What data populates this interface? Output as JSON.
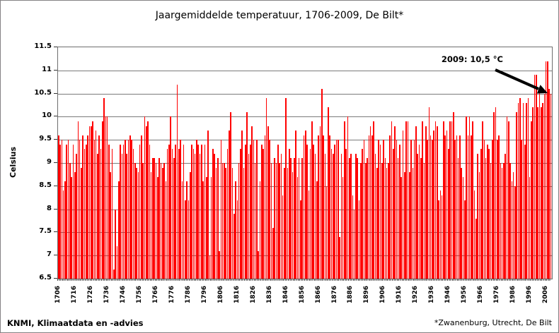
{
  "title": "Jaargemiddelde temperatuur, 1706-2009, De Bilt*",
  "y_axis": {
    "label": "Celsius",
    "min": 6.5,
    "max": 11.5,
    "ticks": [
      {
        "label": "11.5",
        "value": 11.5
      },
      {
        "label": "11",
        "value": 11.0
      },
      {
        "label": "10.5",
        "value": 10.5
      },
      {
        "label": "10",
        "value": 10.0
      },
      {
        "label": "9.5",
        "value": 9.5
      },
      {
        "label": "9",
        "value": 9.0
      },
      {
        "label": "8.5",
        "value": 8.5
      },
      {
        "label": "8",
        "value": 8.0
      },
      {
        "label": "7.5",
        "value": 7.5
      },
      {
        "label": "7",
        "value": 7.0
      },
      {
        "label": "6.5",
        "value": 6.5
      }
    ]
  },
  "x_axis": {
    "tick_years": [
      1706,
      1716,
      1726,
      1736,
      1746,
      1756,
      1766,
      1776,
      1786,
      1796,
      1806,
      1816,
      1826,
      1836,
      1846,
      1856,
      1866,
      1876,
      1886,
      1896,
      1906,
      1916,
      1926,
      1936,
      1946,
      1956,
      1966,
      1976,
      1986,
      1996,
      2006
    ]
  },
  "annotation": {
    "text": "2009: 10,5 °C"
  },
  "footer": {
    "left": "KNMI, Klimaatdata en -advies",
    "right": "*Zwanenburg, Utrecht, De Bilt"
  },
  "colors": {
    "bar": "#ff0000",
    "gridline": "#7a7a7a",
    "axis_text": "#000000",
    "border": "#848284",
    "arrow": "#000000"
  },
  "chart_data": {
    "type": "bar",
    "title": "Jaargemiddelde temperatuur, 1706-2009, De Bilt*",
    "xlabel": "",
    "ylabel": "Celsius",
    "ylim": [
      6.5,
      11.5
    ],
    "x_tick_step": 10,
    "grid": true,
    "legend": false,
    "annotation": "2009: 10,5 °C",
    "year_start": 1706,
    "year_end": 2009,
    "values": [
      9.6,
      9.4,
      9.5,
      8.4,
      8.6,
      9.4,
      9.5,
      9.0,
      8.7,
      9.4,
      8.8,
      9.2,
      9.9,
      9.5,
      8.9,
      9.6,
      9.3,
      9.4,
      9.6,
      9.8,
      9.8,
      9.9,
      9.5,
      9.7,
      9.2,
      9.6,
      9.3,
      9.9,
      10.4,
      10.0,
      10.0,
      9.4,
      8.8,
      9.3,
      6.7,
      8.0,
      7.2,
      8.6,
      9.4,
      9.2,
      9.4,
      9.5,
      9.2,
      9.5,
      9.6,
      9.5,
      9.3,
      9.0,
      8.9,
      8.8,
      9.4,
      9.6,
      9.0,
      10.0,
      9.8,
      9.9,
      9.4,
      8.8,
      9.1,
      9.1,
      9.0,
      8.7,
      9.1,
      9.0,
      8.9,
      9.0,
      8.6,
      9.3,
      9.4,
      10.0,
      9.3,
      9.1,
      9.4,
      10.7,
      9.3,
      9.5,
      8.6,
      9.4,
      8.2,
      8.6,
      8.2,
      8.8,
      9.4,
      9.3,
      9.2,
      9.5,
      9.4,
      9.2,
      9.4,
      8.6,
      9.4,
      8.7,
      9.7,
      7.0,
      8.7,
      9.3,
      9.2,
      8.9,
      9.1,
      7.1,
      9.5,
      9.0,
      9.0,
      8.9,
      9.3,
      9.7,
      10.1,
      8.9,
      7.9,
      8.6,
      8.2,
      9.0,
      9.3,
      9.7,
      8.9,
      9.4,
      10.1,
      9.2,
      9.4,
      9.8,
      9.5,
      9.0,
      9.5,
      7.1,
      8.6,
      9.4,
      9.3,
      9.6,
      10.4,
      9.8,
      9.5,
      9.0,
      7.6,
      9.1,
      9.0,
      9.4,
      9.0,
      9.2,
      8.3,
      8.9,
      10.4,
      8.9,
      9.3,
      9.1,
      8.8,
      9.1,
      9.7,
      8.7,
      9.1,
      8.2,
      9.1,
      9.6,
      9.7,
      9.4,
      8.4,
      9.3,
      9.9,
      9.4,
      9.2,
      8.6,
      9.6,
      9.8,
      10.6,
      9.6,
      9.2,
      8.5,
      10.2,
      9.6,
      9.3,
      9.2,
      9.4,
      9.5,
      9.5,
      7.4,
      9.2,
      8.7,
      9.9,
      9.3,
      10.0,
      9.1,
      9.2,
      8.3,
      8.0,
      9.2,
      9.1,
      8.2,
      9.0,
      9.3,
      9.5,
      9.0,
      9.1,
      9.6,
      9.8,
      9.6,
      9.9,
      9.2,
      8.9,
      9.5,
      9.4,
      9.0,
      9.5,
      9.1,
      8.9,
      9.0,
      9.6,
      9.9,
      9.3,
      9.8,
      9.5,
      9.1,
      9.4,
      8.7,
      9.7,
      8.8,
      9.9,
      9.9,
      8.8,
      9.5,
      8.9,
      9.5,
      9.8,
      9.2,
      9.4,
      9.1,
      9.9,
      9.0,
      9.8,
      9.5,
      10.2,
      9.6,
      9.5,
      9.7,
      9.9,
      9.8,
      8.2,
      8.4,
      8.3,
      9.9,
      9.6,
      9.7,
      9.3,
      9.9,
      9.9,
      10.1,
      9.5,
      9.6,
      9.1,
      9.6,
      8.9,
      8.7,
      8.2,
      10.0,
      9.6,
      10.0,
      9.6,
      9.9,
      8.4,
      7.8,
      9.2,
      8.8,
      9.3,
      9.9,
      9.5,
      9.1,
      9.4,
      9.3,
      9.0,
      9.5,
      10.1,
      10.2,
      9.5,
      9.6,
      9.0,
      8.9,
      9.0,
      9.2,
      10.0,
      9.9,
      9.0,
      8.6,
      8.8,
      8.5,
      10.1,
      10.3,
      10.4,
      9.5,
      10.3,
      9.4,
      10.3,
      10.4,
      8.7,
      9.9,
      10.2,
      10.9,
      10.9,
      10.2,
      10.6,
      10.2,
      10.3,
      10.5,
      11.2,
      11.2,
      10.6,
      10.5
    ]
  }
}
